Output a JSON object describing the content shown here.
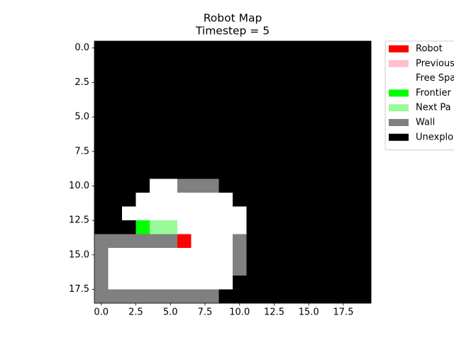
{
  "chart_data": {
    "type": "image",
    "title": "Robot Map",
    "subtitle": "Timestep = 5",
    "legend": [
      {
        "name": "Robot",
        "color": "#ff0000"
      },
      {
        "name": "Previous",
        "color": "#ffc0cb"
      },
      {
        "name": "Free Spa",
        "color": "#ffffff"
      },
      {
        "name": "Frontier",
        "color": "#00ff00"
      },
      {
        "name": "Next Pa",
        "color": "#98fb98"
      },
      {
        "name": "Wall",
        "color": "#808080"
      },
      {
        "name": "Unexplo",
        "color": "#000000"
      }
    ],
    "legend_position": "outside-right",
    "xlim": [
      -0.5,
      19.5
    ],
    "ylim": [
      18.5,
      -0.5
    ],
    "xticks": [
      {
        "value": 0,
        "label": "0.0"
      },
      2.5,
      {
        "value": 5,
        "label": "5.0"
      },
      7.5,
      {
        "value": 10,
        "label": "10.0"
      },
      12.5,
      {
        "value": 15,
        "label": "15.0"
      },
      17.5
    ],
    "yticks": [
      {
        "value": 0,
        "label": "0.0"
      },
      2.5,
      {
        "value": 5,
        "label": "5.0"
      },
      7.5,
      {
        "value": 10,
        "label": "10.0"
      },
      12.5,
      {
        "value": 15,
        "label": "15.0"
      },
      17.5
    ],
    "grid": [
      [
        6,
        6,
        6,
        6,
        6,
        6,
        6,
        6,
        6,
        6,
        6,
        6,
        6,
        6,
        6,
        6,
        6,
        6,
        6,
        6
      ],
      [
        6,
        6,
        6,
        6,
        6,
        6,
        6,
        6,
        6,
        6,
        6,
        6,
        6,
        6,
        6,
        6,
        6,
        6,
        6,
        6
      ],
      [
        6,
        6,
        6,
        6,
        6,
        6,
        6,
        6,
        6,
        6,
        6,
        6,
        6,
        6,
        6,
        6,
        6,
        6,
        6,
        6
      ],
      [
        6,
        6,
        6,
        6,
        6,
        6,
        6,
        6,
        6,
        6,
        6,
        6,
        6,
        6,
        6,
        6,
        6,
        6,
        6,
        6
      ],
      [
        6,
        6,
        6,
        6,
        6,
        6,
        6,
        6,
        6,
        6,
        6,
        6,
        6,
        6,
        6,
        6,
        6,
        6,
        6,
        6
      ],
      [
        6,
        6,
        6,
        6,
        6,
        6,
        6,
        6,
        6,
        6,
        6,
        6,
        6,
        6,
        6,
        6,
        6,
        6,
        6,
        6
      ],
      [
        6,
        6,
        6,
        6,
        6,
        6,
        6,
        6,
        6,
        6,
        6,
        6,
        6,
        6,
        6,
        6,
        6,
        6,
        6,
        6
      ],
      [
        6,
        6,
        6,
        6,
        6,
        6,
        6,
        6,
        6,
        6,
        6,
        6,
        6,
        6,
        6,
        6,
        6,
        6,
        6,
        6
      ],
      [
        6,
        6,
        6,
        6,
        6,
        6,
        6,
        6,
        6,
        6,
        6,
        6,
        6,
        6,
        6,
        6,
        6,
        6,
        6,
        6
      ],
      [
        6,
        6,
        6,
        6,
        6,
        6,
        6,
        6,
        6,
        6,
        6,
        6,
        6,
        6,
        6,
        6,
        6,
        6,
        6,
        6
      ],
      [
        6,
        6,
        6,
        6,
        2,
        2,
        5,
        5,
        5,
        6,
        6,
        6,
        6,
        6,
        6,
        6,
        6,
        6,
        6,
        6
      ],
      [
        6,
        6,
        6,
        2,
        2,
        2,
        2,
        2,
        2,
        2,
        6,
        6,
        6,
        6,
        6,
        6,
        6,
        6,
        6,
        6
      ],
      [
        6,
        6,
        2,
        2,
        2,
        2,
        2,
        2,
        2,
        2,
        2,
        6,
        6,
        6,
        6,
        6,
        6,
        6,
        6,
        6
      ],
      [
        6,
        6,
        6,
        3,
        4,
        4,
        2,
        2,
        2,
        2,
        2,
        6,
        6,
        6,
        6,
        6,
        6,
        6,
        6,
        6
      ],
      [
        5,
        5,
        5,
        5,
        5,
        5,
        0,
        2,
        2,
        2,
        5,
        6,
        6,
        6,
        6,
        6,
        6,
        6,
        6,
        6
      ],
      [
        5,
        2,
        2,
        2,
        2,
        2,
        2,
        2,
        2,
        2,
        5,
        6,
        6,
        6,
        6,
        6,
        6,
        6,
        6,
        6
      ],
      [
        5,
        2,
        2,
        2,
        2,
        2,
        2,
        2,
        2,
        2,
        5,
        6,
        6,
        6,
        6,
        6,
        6,
        6,
        6,
        6
      ],
      [
        5,
        2,
        2,
        2,
        2,
        2,
        2,
        2,
        2,
        2,
        6,
        6,
        6,
        6,
        6,
        6,
        6,
        6,
        6,
        6
      ],
      [
        5,
        5,
        5,
        5,
        5,
        5,
        5,
        5,
        5,
        6,
        6,
        6,
        6,
        6,
        6,
        6,
        6,
        6,
        6,
        6
      ]
    ]
  }
}
